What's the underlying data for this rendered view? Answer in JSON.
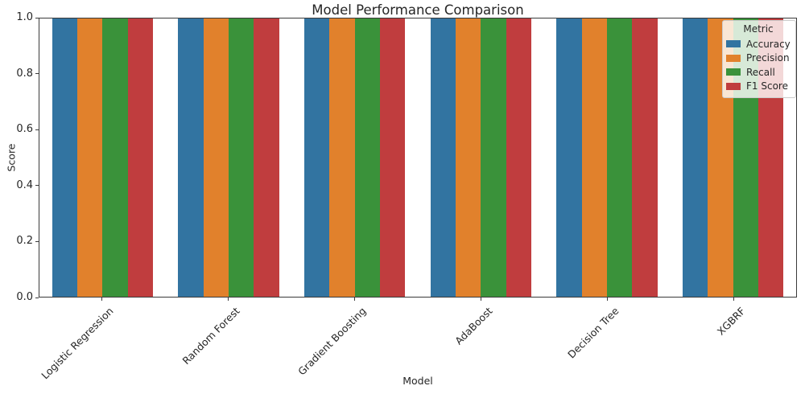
{
  "chart_data": {
    "type": "bar",
    "title": "Model Performance Comparison",
    "xlabel": "Model",
    "ylabel": "Score",
    "categories": [
      "Logistic Regression",
      "Random Forest",
      "Gradient Boosting",
      "AdaBoost",
      "Decision Tree",
      "XGBRF"
    ],
    "series": [
      {
        "name": "Accuracy",
        "values": [
          1.0,
          1.0,
          1.0,
          1.0,
          1.0,
          1.0
        ]
      },
      {
        "name": "Precision",
        "values": [
          1.0,
          1.0,
          1.0,
          1.0,
          1.0,
          1.0
        ]
      },
      {
        "name": "Recall",
        "values": [
          1.0,
          1.0,
          1.0,
          1.0,
          1.0,
          1.0
        ]
      },
      {
        "name": "F1 Score",
        "values": [
          1.0,
          1.0,
          1.0,
          1.0,
          1.0,
          1.0
        ]
      }
    ],
    "colors": [
      "#3274a1",
      "#e1812c",
      "#3a923a",
      "#c03d3e"
    ],
    "ylim": [
      0.0,
      1.0
    ],
    "y_ticks": [
      0.0,
      0.2,
      0.4,
      0.6,
      0.8,
      1.0
    ],
    "y_tick_labels": [
      "0.0",
      "0.2",
      "0.4",
      "0.6",
      "0.8",
      "1.0"
    ],
    "bar_group_fraction": 0.8,
    "grid": false,
    "legend": {
      "title": "Metric",
      "position": "upper right"
    }
  }
}
